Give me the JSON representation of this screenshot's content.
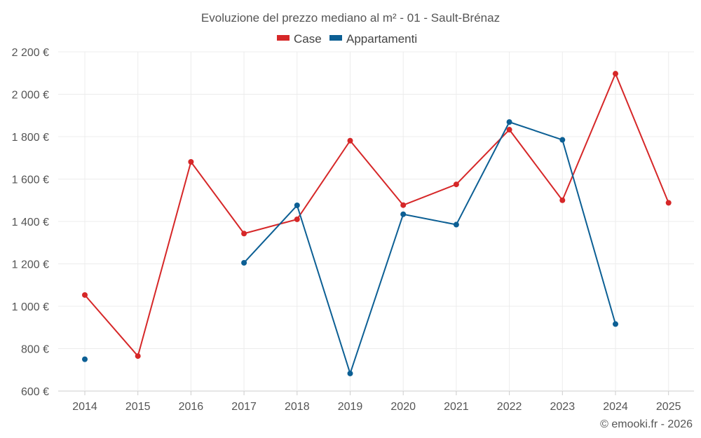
{
  "chart_data": {
    "type": "line",
    "title": "Evoluzione del prezzo mediano al m² - 01 - Sault-Brénaz",
    "categories": [
      "2014",
      "2015",
      "2016",
      "2017",
      "2018",
      "2019",
      "2020",
      "2021",
      "2022",
      "2023",
      "2024",
      "2025"
    ],
    "series": [
      {
        "name": "Case",
        "color": "#d62728",
        "values": [
          1053,
          765,
          1681,
          1343,
          1410,
          1781,
          1477,
          1575,
          1833,
          1500,
          2097,
          1488
        ]
      },
      {
        "name": "Appartamenti",
        "color": "#0c5f94",
        "values": [
          750,
          null,
          null,
          1205,
          1476,
          683,
          1434,
          1385,
          1869,
          1785,
          916,
          null
        ]
      }
    ],
    "ylim": [
      600,
      2200
    ],
    "yticks": [
      600,
      800,
      1000,
      1200,
      1400,
      1600,
      1800,
      2000,
      2200
    ],
    "ytick_labels": [
      "600 €",
      "800 €",
      "1 000 €",
      "1 200 €",
      "1 400 €",
      "1 600 €",
      "1 800 €",
      "2 000 €",
      "2 200 €"
    ],
    "xlabel": "",
    "ylabel": "",
    "grid": true,
    "legend_position": "top-center",
    "credit": "© emooki.fr - 2026"
  }
}
